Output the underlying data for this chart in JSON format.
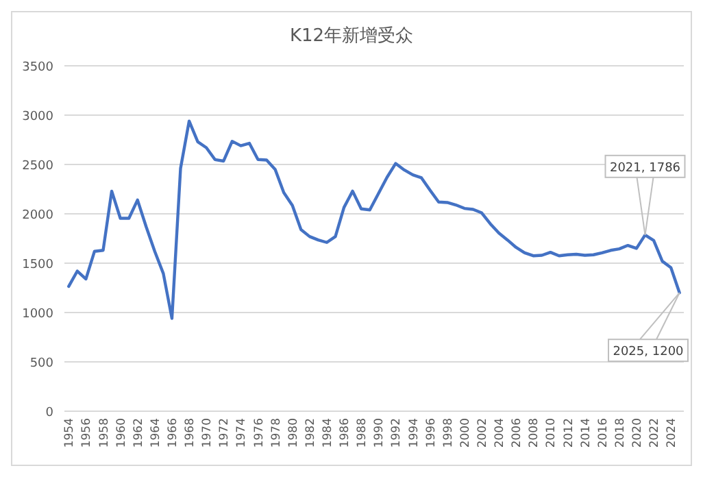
{
  "chart_data": {
    "type": "line",
    "title": "K12年新增受众",
    "x": [
      1954,
      1955,
      1956,
      1957,
      1958,
      1959,
      1960,
      1961,
      1962,
      1963,
      1964,
      1965,
      1966,
      1967,
      1968,
      1969,
      1970,
      1971,
      1972,
      1973,
      1974,
      1975,
      1976,
      1977,
      1978,
      1979,
      1980,
      1981,
      1982,
      1983,
      1984,
      1985,
      1986,
      1987,
      1988,
      1989,
      1990,
      1991,
      1992,
      1993,
      1994,
      1995,
      1996,
      1997,
      1998,
      1999,
      2000,
      2001,
      2002,
      2003,
      2004,
      2005,
      2006,
      2007,
      2008,
      2009,
      2010,
      2011,
      2012,
      2013,
      2014,
      2015,
      2016,
      2017,
      2018,
      2019,
      2020,
      2021,
      2022,
      2023,
      2024,
      2025
    ],
    "series": [
      {
        "color": "#4472c4",
        "values": [
          1265,
          1420,
          1340,
          1620,
          1630,
          2230,
          1955,
          1955,
          2140,
          1870,
          1620,
          1395,
          940,
          2460,
          2940,
          2730,
          2670,
          2550,
          2535,
          2735,
          2690,
          2715,
          2550,
          2545,
          2450,
          2215,
          2085,
          1840,
          1770,
          1735,
          1710,
          1770,
          2065,
          2230,
          2050,
          2040,
          2205,
          2370,
          2510,
          2445,
          2395,
          2365,
          2240,
          2120,
          2115,
          2090,
          2055,
          2045,
          2010,
          1900,
          1805,
          1735,
          1660,
          1605,
          1575,
          1580,
          1610,
          1575,
          1585,
          1590,
          1580,
          1585,
          1605,
          1630,
          1645,
          1680,
          1650,
          1786,
          1730,
          1520,
          1455,
          1200
        ]
      }
    ],
    "xlim": [
      1953.5,
      2025.5
    ],
    "xticks": [
      1954,
      1956,
      1958,
      1960,
      1962,
      1964,
      1966,
      1968,
      1970,
      1972,
      1974,
      1976,
      1978,
      1980,
      1982,
      1984,
      1986,
      1988,
      1990,
      1992,
      1994,
      1996,
      1998,
      2000,
      2002,
      2004,
      2006,
      2008,
      2010,
      2012,
      2014,
      2016,
      2018,
      2020,
      2022,
      2024
    ],
    "ylim": [
      0,
      3500
    ],
    "yticks": [
      0,
      500,
      1000,
      1500,
      2000,
      2500,
      3000,
      3500
    ],
    "grid": "y",
    "marker": "none",
    "line_style": "solid",
    "annotations": [
      {
        "text": "2021, 1786",
        "x": 2021,
        "y": 1786
      },
      {
        "text": "2025, 1200",
        "x": 2025,
        "y": 1200
      }
    ]
  }
}
